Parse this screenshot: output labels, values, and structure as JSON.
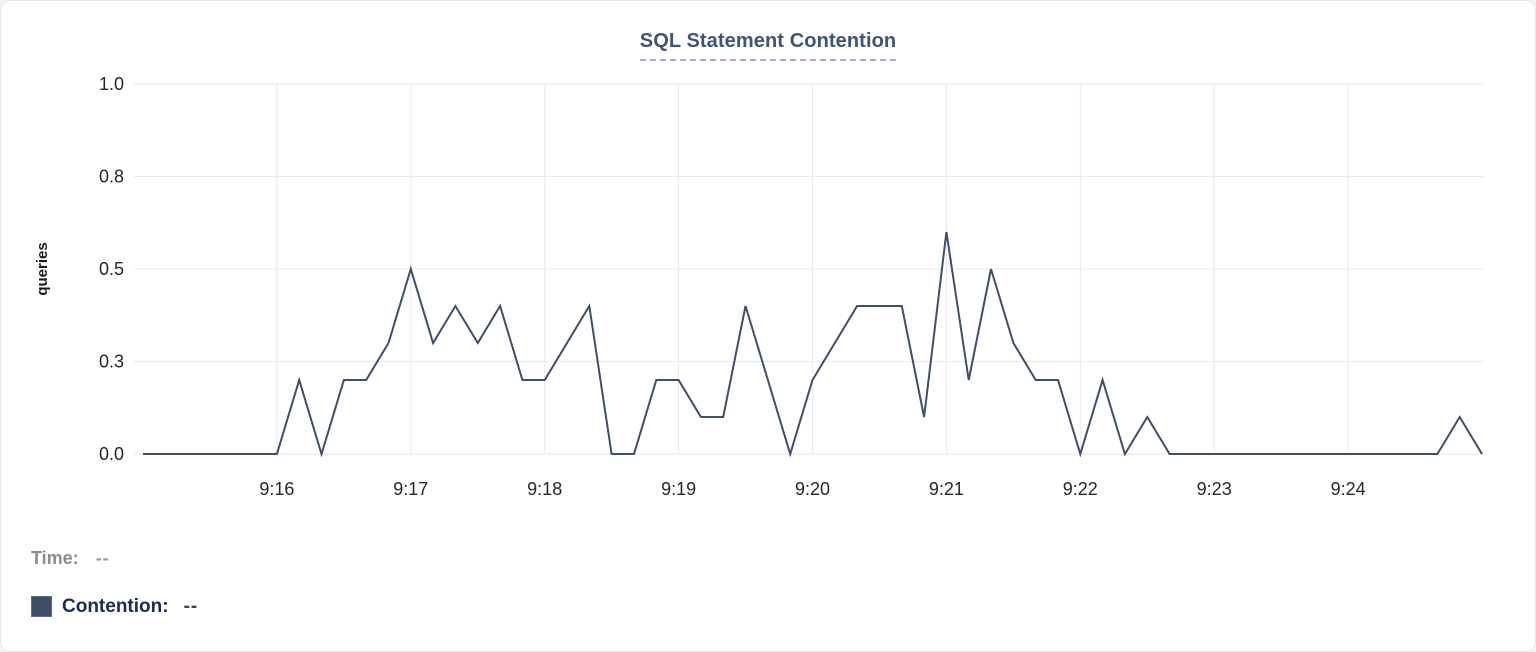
{
  "chart_data": {
    "type": "line",
    "title": "SQL Statement Contention",
    "xlabel": "",
    "ylabel": "queries",
    "ylim": [
      0,
      1
    ],
    "grid": true,
    "x_start": "9:15:00",
    "x_end": "9:25:00",
    "sample_interval_seconds": 10,
    "x_tick_labels": [
      "9:16",
      "9:17",
      "9:18",
      "9:19",
      "9:20",
      "9:21",
      "9:22",
      "9:23",
      "9:24"
    ],
    "y_ticks": [
      {
        "value": 0,
        "label": "0.0"
      },
      {
        "value": 0.25,
        "label": "0.3"
      },
      {
        "value": 0.5,
        "label": "0.5"
      },
      {
        "value": 0.75,
        "label": "0.8"
      },
      {
        "value": 1.0,
        "label": "1.0"
      }
    ],
    "legend_position": "bottom-left",
    "series": [
      {
        "name": "Contention",
        "color": "#3e4e6b",
        "values": [
          0,
          0,
          0,
          0,
          0,
          0,
          0,
          0.2,
          0,
          0.2,
          0.2,
          0.3,
          0.5,
          0.3,
          0.4,
          0.3,
          0.4,
          0.2,
          0.2,
          0.3,
          0.4,
          0,
          0,
          0.2,
          0.2,
          0.1,
          0.1,
          0.4,
          0.2,
          0,
          0.2,
          0.3,
          0.4,
          0.4,
          0.4,
          0.1,
          0.6,
          0.2,
          0.5,
          0.3,
          0.2,
          0.2,
          0,
          0.2,
          0,
          0.1,
          0,
          0,
          0,
          0,
          0,
          0,
          0,
          0,
          0,
          0,
          0,
          0,
          0,
          0.1,
          0
        ]
      }
    ]
  },
  "legend": {
    "time_label": "Time:",
    "time_value": "--",
    "contention_label": "Contention:",
    "contention_value": "--"
  },
  "colors": {
    "series_line": "#3e4e6b",
    "legend_swatch": "#3e4e68",
    "title": "#3e5576",
    "title_underline": "#a6abc8",
    "gridline": "#eaeaec",
    "axis_line": "#e3e4e6",
    "tick_text": "#26272a"
  }
}
